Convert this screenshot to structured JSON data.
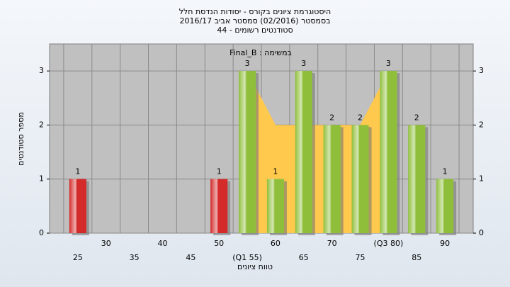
{
  "chart_data": {
    "type": "bar",
    "title": "היסטוגרמת ציונים בקורס - יסודות הנדסת חלל",
    "subtitle": "בסמסטר  (02/2016)  סמסטר אביב 2016/17",
    "subtitle2": "סטודנטים רשומים - 44",
    "annotation": "במשימה : Final_B",
    "x_label": "טווח ציונים",
    "y_label": "מספר סטודנטים",
    "categories": [
      "25",
      "30",
      "35",
      "40",
      "45",
      "50",
      "(Q1 55)",
      "60",
      "65",
      "70",
      "75",
      "(Q3 80)",
      "85",
      "90"
    ],
    "values": [
      1,
      0,
      0,
      0,
      0,
      1,
      3,
      1,
      3,
      2,
      2,
      3,
      2,
      1
    ],
    "colors": [
      "#d42a2a",
      "#8fbf3a",
      "#8fbf3a",
      "#8fbf3a",
      "#8fbf3a",
      "#d42a2a",
      "#8fbf3a",
      "#8fbf3a",
      "#8fbf3a",
      "#8fbf3a",
      "#8fbf3a",
      "#8fbf3a",
      "#8fbf3a",
      "#8fbf3a"
    ],
    "area": {
      "color": "#ffc94d",
      "categories": [
        "(Q1 55)",
        "60",
        "65",
        "70",
        "75",
        "(Q3 80)"
      ],
      "values": [
        3,
        2,
        2,
        2,
        2,
        3
      ]
    },
    "ylim": [
      0,
      3.5
    ],
    "yticks": [
      0,
      1,
      2,
      3
    ],
    "grid": true
  }
}
